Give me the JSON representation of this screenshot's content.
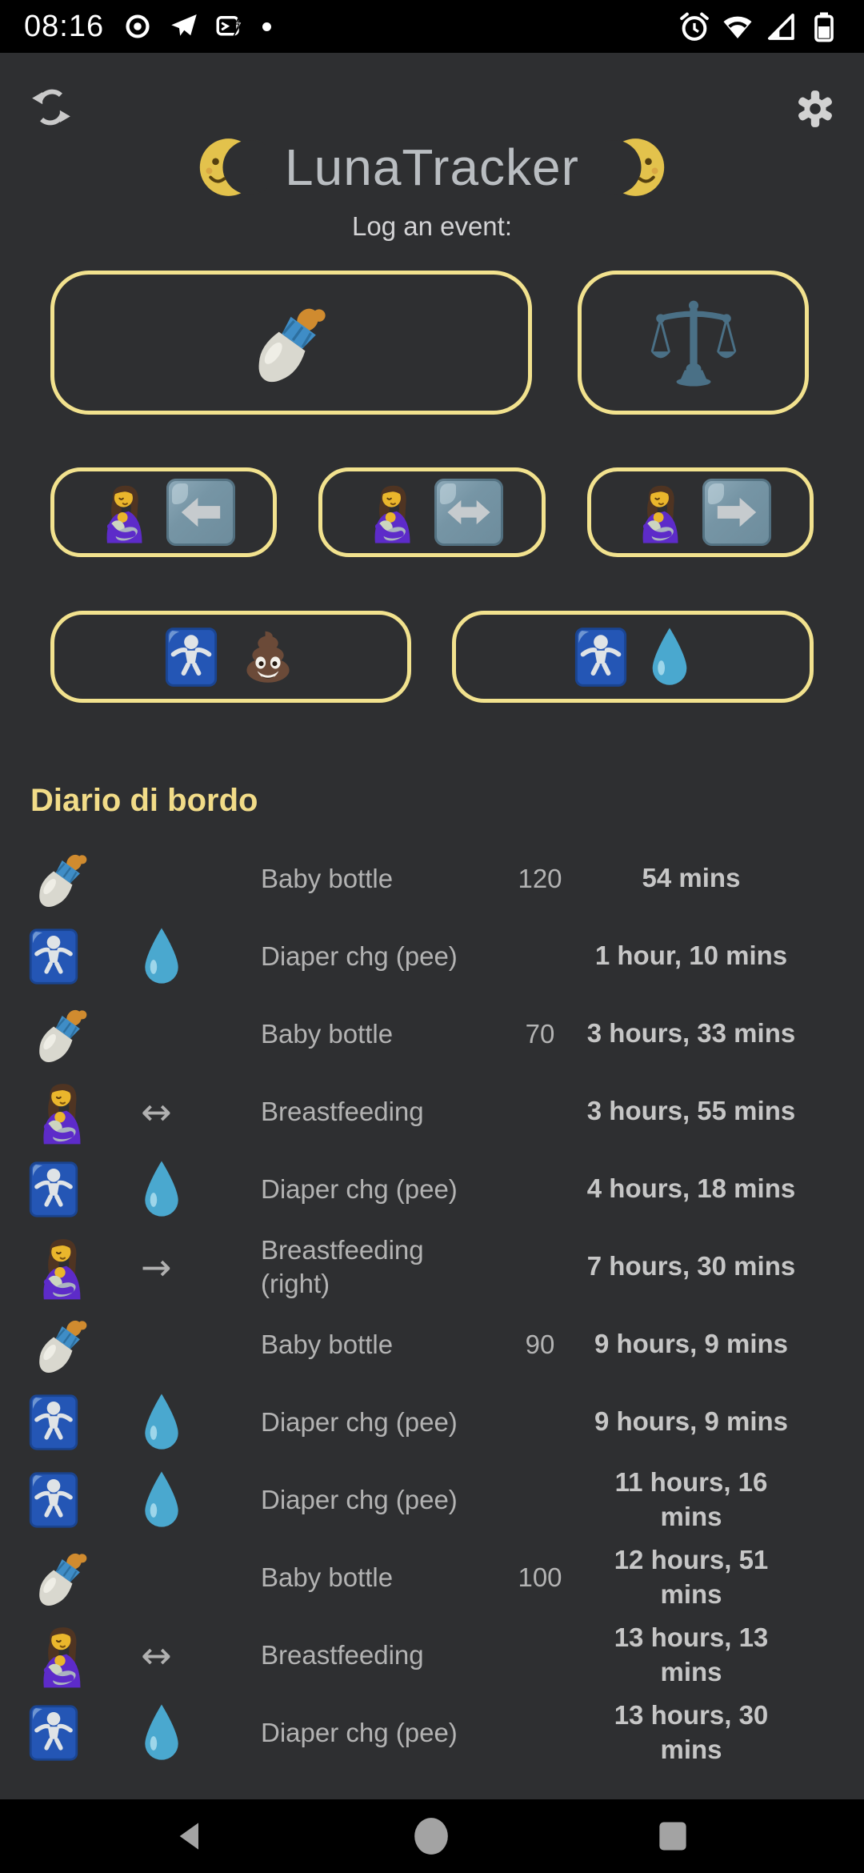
{
  "status_bar": {
    "time": "08:16",
    "left_icons": [
      "location",
      "telegram",
      "sms-flash",
      "notification-dot"
    ],
    "right_icons": [
      "alarm",
      "wifi",
      "cell-signal",
      "battery"
    ]
  },
  "header": {
    "sync_icon": "sync",
    "settings_icon": "gear",
    "moon_left_icon": "moon-left",
    "moon_right_icon": "moon-right",
    "title": "LunaTracker",
    "subtitle": "Log an event:"
  },
  "log_buttons": {
    "rows": [
      {
        "name": "row-1",
        "buttons": [
          {
            "id": "baby-bottle",
            "icons": [
              "bottle"
            ]
          },
          {
            "id": "weight",
            "icons": [
              "scale"
            ]
          }
        ]
      },
      {
        "name": "row-2",
        "buttons": [
          {
            "id": "breastfeeding-left",
            "icons": [
              "breastfeeding",
              "arrow-left-chip"
            ]
          },
          {
            "id": "breastfeeding-both",
            "icons": [
              "breastfeeding",
              "arrow-both-chip"
            ]
          },
          {
            "id": "breastfeeding-right",
            "icons": [
              "breastfeeding",
              "arrow-right-chip"
            ]
          }
        ]
      },
      {
        "name": "row-3",
        "buttons": [
          {
            "id": "diaper-poop",
            "icons": [
              "baby-sign",
              "poop"
            ]
          },
          {
            "id": "diaper-pee",
            "icons": [
              "baby-sign",
              "droplet"
            ]
          }
        ]
      }
    ]
  },
  "journal": {
    "heading": "Diario di bordo",
    "entries": [
      {
        "icon": "bottle",
        "label": "Baby bottle",
        "amount": "120",
        "elapsed": "54 mins"
      },
      {
        "icon": "baby-sign",
        "icon2": "droplet",
        "label": "Diaper chg (pee)",
        "amount": "",
        "elapsed": "1 hour, 10 mins"
      },
      {
        "icon": "bottle",
        "label": "Baby bottle",
        "amount": "70",
        "elapsed": "3 hours, 33 mins"
      },
      {
        "icon": "breastfeeding",
        "arrow": "↔",
        "label": "Breastfeeding",
        "amount": "",
        "elapsed": "3 hours, 55 mins"
      },
      {
        "icon": "baby-sign",
        "icon2": "droplet",
        "label": "Diaper chg (pee)",
        "amount": "",
        "elapsed": "4 hours, 18 mins"
      },
      {
        "icon": "breastfeeding",
        "arrow": "→",
        "label": "Breastfeeding (right)",
        "amount": "",
        "elapsed": "7 hours, 30 mins"
      },
      {
        "icon": "bottle",
        "label": "Baby bottle",
        "amount": "90",
        "elapsed": "9 hours, 9 mins"
      },
      {
        "icon": "baby-sign",
        "icon2": "droplet",
        "label": "Diaper chg (pee)",
        "amount": "",
        "elapsed": "9 hours, 9 mins"
      },
      {
        "icon": "baby-sign",
        "icon2": "droplet",
        "label": "Diaper chg (pee)",
        "amount": "",
        "elapsed": "11 hours, 16 mins"
      },
      {
        "icon": "bottle",
        "label": "Baby bottle",
        "amount": "100",
        "elapsed": "12 hours, 51 mins"
      },
      {
        "icon": "breastfeeding",
        "arrow": "↔",
        "label": "Breastfeeding",
        "amount": "",
        "elapsed": "13 hours, 13 mins"
      },
      {
        "icon": "baby-sign",
        "icon2": "droplet",
        "label": "Diaper chg (pee)",
        "amount": "",
        "elapsed": "13 hours, 30 mins"
      }
    ]
  },
  "nav_bar": {
    "icons": [
      "back",
      "home",
      "recents"
    ]
  },
  "colors": {
    "background": "#2e2f31",
    "bar_black": "#000000",
    "accent_yellow_border": "#f2e28e",
    "heading_yellow": "#f2dc88",
    "title_gray": "#b9bdc1",
    "text_gray": "#b3b3b3",
    "time_bold_gray": "#c6c6c6",
    "chip_steel_blue": "#7695a5",
    "baby_sign_blue": "#2456b5",
    "droplet_blue": "#4aa8cf"
  }
}
